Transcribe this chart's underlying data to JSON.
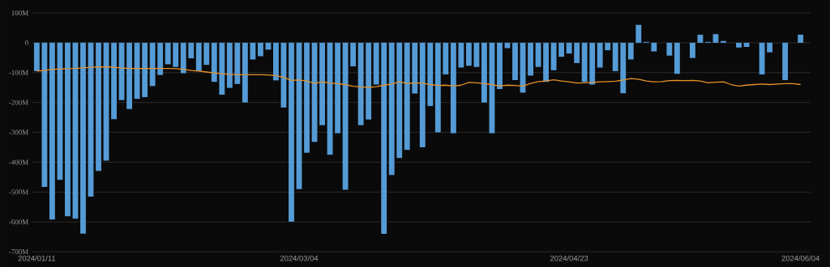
{
  "chart_data": {
    "type": "bar",
    "categories": [
      "2024/01/11",
      null,
      null,
      null,
      null,
      null,
      null,
      null,
      null,
      null,
      null,
      null,
      null,
      null,
      null,
      null,
      null,
      null,
      null,
      null,
      null,
      null,
      null,
      null,
      null,
      null,
      null,
      null,
      null,
      null,
      null,
      null,
      null,
      null,
      "2024/03/04",
      null,
      null,
      null,
      null,
      null,
      null,
      null,
      null,
      null,
      null,
      null,
      null,
      null,
      null,
      null,
      null,
      null,
      null,
      null,
      null,
      null,
      null,
      null,
      null,
      null,
      null,
      null,
      null,
      null,
      null,
      null,
      null,
      null,
      null,
      "2024/04/23",
      null,
      null,
      null,
      null,
      null,
      null,
      null,
      null,
      null,
      null,
      null,
      null,
      null,
      null,
      null,
      null,
      null,
      null,
      null,
      null,
      null,
      null,
      null,
      null,
      null,
      null,
      null,
      null,
      null,
      "2024/06/04"
    ],
    "series": [
      {
        "color": "#559bd6",
        "values": [
          -95,
          -483,
          -592,
          -459,
          -581,
          -589,
          -639,
          -515,
          -429,
          -395,
          -256,
          -192,
          -222,
          -188,
          -182,
          -145,
          -108,
          -72,
          -81,
          -102,
          -52,
          -95,
          -74,
          -131,
          -174,
          -151,
          -138,
          -200,
          -56,
          -45,
          -23,
          -126,
          -217,
          -599,
          -490,
          -368,
          -332,
          -276,
          -375,
          -303,
          -492,
          -79,
          -276,
          -257,
          -140,
          -640,
          -443,
          -386,
          -359,
          -170,
          -350,
          -212,
          -300,
          -106,
          -303,
          -83,
          -77,
          -81,
          -200,
          -303,
          -155,
          -18,
          -125,
          -167,
          -110,
          -81,
          -131,
          -92,
          -47,
          -36,
          -68,
          -131,
          -140,
          -83,
          -25,
          -95,
          -169,
          -56,
          60,
          3,
          -29,
          0,
          -43,
          -104,
          0,
          -51,
          27,
          3,
          29,
          6,
          0,
          -16,
          -14,
          0,
          -106,
          -32,
          0,
          -125,
          0,
          27
        ]
      },
      {
        "type": "line",
        "color": "#e8922a",
        "values": [
          -95,
          -93,
          -89,
          -88,
          -87,
          -86,
          -84,
          -82,
          -81,
          -81,
          -82,
          -85,
          -86,
          -86,
          -86,
          -86,
          -86,
          -86,
          -87,
          -89,
          -93,
          -95,
          -98,
          -101,
          -104,
          -106,
          -107,
          -107,
          -107,
          -107,
          -108,
          -110,
          -116,
          -126,
          -125,
          -128,
          -136,
          -131,
          -135,
          -137,
          -140,
          -146,
          -148,
          -149,
          -147,
          -142,
          -138,
          -131,
          -136,
          -135,
          -135,
          -140,
          -143,
          -142,
          -145,
          -142,
          -133,
          -134,
          -137,
          -140,
          -145,
          -142,
          -143,
          -145,
          -136,
          -130,
          -128,
          -124,
          -128,
          -131,
          -135,
          -134,
          -133,
          -131,
          -130,
          -129,
          -125,
          -120,
          -122,
          -128,
          -131,
          -130,
          -127,
          -126,
          -127,
          -126,
          -128,
          -134,
          -132,
          -131,
          -140,
          -145,
          -142,
          -140,
          -138,
          -140,
          -138,
          -137,
          -137,
          -140
        ]
      }
    ],
    "ylim": [
      -700,
      100
    ],
    "yticks": [
      {
        "value": -700,
        "label": "-700M"
      },
      {
        "value": -600,
        "label": "-600M"
      },
      {
        "value": -500,
        "label": "-500M"
      },
      {
        "value": -400,
        "label": "-400M"
      },
      {
        "value": -300,
        "label": "-300M"
      },
      {
        "value": -200,
        "label": "-200M"
      },
      {
        "value": -100,
        "label": "-100M"
      },
      0,
      {
        "value": 100,
        "label": "100M"
      }
    ],
    "grid": "y"
  }
}
